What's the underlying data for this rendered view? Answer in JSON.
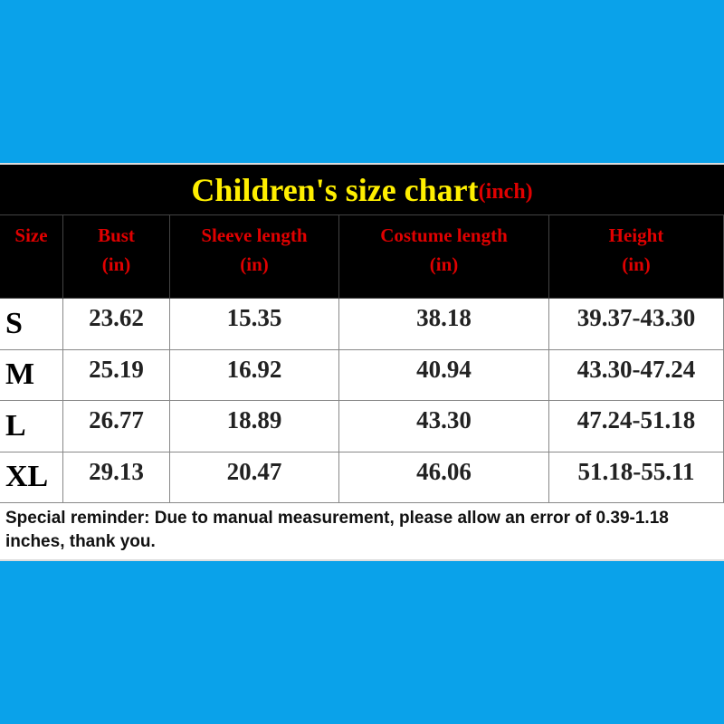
{
  "title": {
    "main": "Children's size chart",
    "unit": "(inch)"
  },
  "table": {
    "headers": [
      {
        "name": "Size"
      },
      {
        "name": "Bust",
        "unit": "(in)"
      },
      {
        "name": "Sleeve length",
        "unit": "(in)"
      },
      {
        "name": "Costume length",
        "unit": "(in)"
      },
      {
        "name": "Height",
        "unit": "(in)"
      }
    ],
    "rows": [
      [
        "S",
        "23.62",
        "15.35",
        "38.18",
        "39.37-43.30"
      ],
      [
        "M",
        "25.19",
        "16.92",
        "40.94",
        "43.30-47.24"
      ],
      [
        "L",
        "26.77",
        "18.89",
        "43.30",
        "47.24-51.18"
      ],
      [
        "XL",
        "29.13",
        "20.47",
        "46.06",
        "51.18-55.11"
      ]
    ]
  },
  "note": "Special reminder: Due to manual measurement, please allow an error of 0.39-1.18 inches, thank you."
}
